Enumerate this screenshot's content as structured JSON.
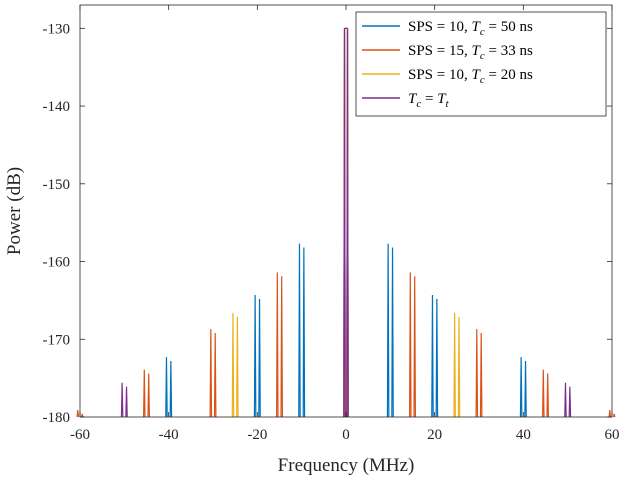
{
  "chart_data": {
    "type": "line",
    "title": "",
    "xlabel": "Frequency (MHz)",
    "ylabel": "Power (dB)",
    "xlim": [
      -60,
      60
    ],
    "ylim": [
      -180,
      -127
    ],
    "xticks": [
      -60,
      -40,
      -20,
      0,
      20,
      40,
      60
    ],
    "xtick_labels": [
      "-60",
      "-40",
      "-20",
      "0",
      "20",
      "40",
      "60"
    ],
    "yticks": [
      -180,
      -170,
      -160,
      -150,
      -140,
      -130
    ],
    "ytick_labels": [
      "-180",
      "-170",
      "-160",
      "-150",
      "-140",
      "-130"
    ],
    "grid": false,
    "legend_position": "top-right",
    "legend_entries": [
      {
        "prefix": "SPS = 10, ",
        "var": "T",
        "sub": "c",
        "suffix": " = 50 ns",
        "color": "#0072BD"
      },
      {
        "prefix": "SPS = 15, ",
        "var": "T",
        "sub": "c",
        "suffix": " = 33 ns",
        "color": "#D95319"
      },
      {
        "prefix": "SPS = 10, ",
        "var": "T",
        "sub": "c",
        "suffix": " = 20 ns",
        "color": "#EDB120"
      },
      {
        "prefix": "",
        "var": "T",
        "sub": "c",
        "suffix": " = ",
        "var2": "T",
        "sub2": "t",
        "color": "#7E2F8E"
      }
    ],
    "series": [
      {
        "name": "SPS = 10, Tc = 50 ns",
        "color": "#0072BD",
        "peaks": [
          {
            "f": -40,
            "p": -172.3
          },
          {
            "f": -20,
            "p": -164.3
          },
          {
            "f": -10,
            "p": -157.7
          },
          {
            "f": 0,
            "p": -130
          },
          {
            "f": 10,
            "p": -157.7
          },
          {
            "f": 20,
            "p": -164.3
          },
          {
            "f": 40,
            "p": -172.3
          }
        ]
      },
      {
        "name": "SPS = 15, Tc = 33 ns",
        "color": "#D95319",
        "peaks": [
          {
            "f": -60,
            "p": -179.1
          },
          {
            "f": -45,
            "p": -173.9
          },
          {
            "f": -30,
            "p": -168.7
          },
          {
            "f": -15,
            "p": -161.4
          },
          {
            "f": 0,
            "p": -130
          },
          {
            "f": 15,
            "p": -161.4
          },
          {
            "f": 30,
            "p": -168.7
          },
          {
            "f": 45,
            "p": -173.9
          },
          {
            "f": 60,
            "p": -179.1
          }
        ]
      },
      {
        "name": "SPS = 10, Tc = 20 ns",
        "color": "#EDB120",
        "peaks": [
          {
            "f": -25,
            "p": -166.6
          },
          {
            "f": 0,
            "p": -130
          },
          {
            "f": 25,
            "p": -166.6
          }
        ]
      },
      {
        "name": "Tc = Tt",
        "color": "#7E2F8E",
        "peaks": [
          {
            "f": -50,
            "p": -175.6
          },
          {
            "f": 0,
            "p": -130
          },
          {
            "f": 50,
            "p": -175.6
          }
        ]
      }
    ]
  }
}
